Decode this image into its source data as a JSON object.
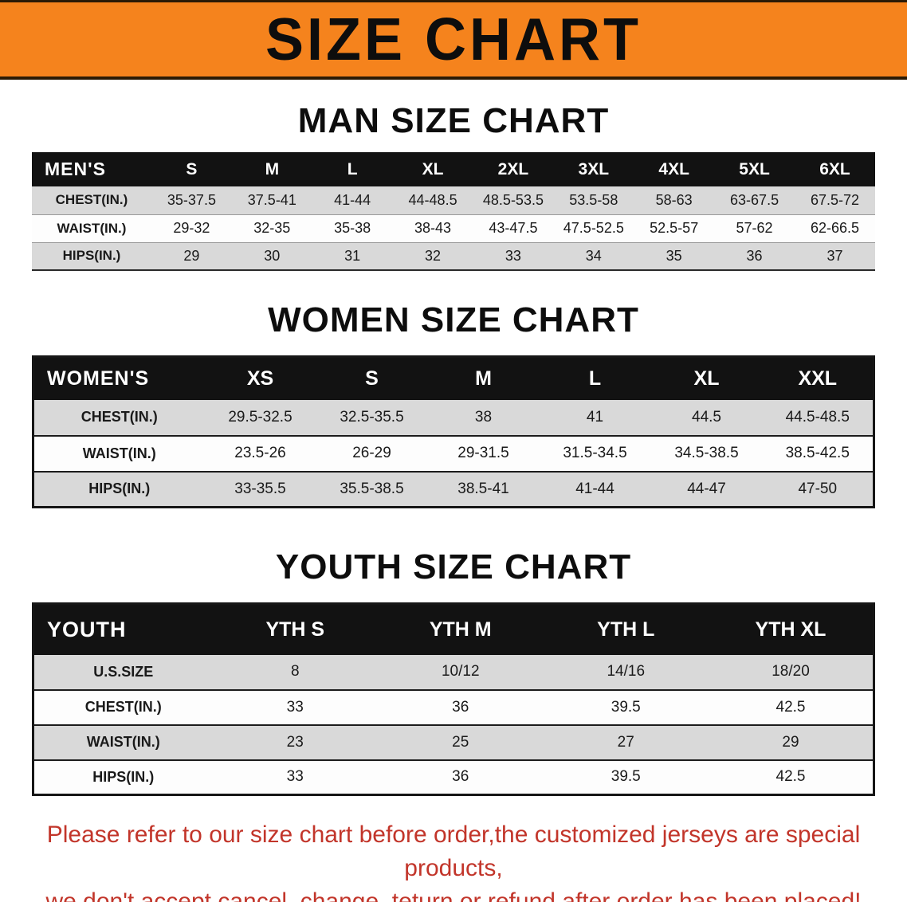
{
  "banner": {
    "title": "SIZE CHART"
  },
  "men": {
    "title": "MAN SIZE CHART",
    "header": [
      "MEN'S",
      "S",
      "M",
      "L",
      "XL",
      "2XL",
      "3XL",
      "4XL",
      "5XL",
      "6XL"
    ],
    "rows": [
      {
        "label": "CHEST(IN.)",
        "cells": [
          "35-37.5",
          "37.5-41",
          "41-44",
          "44-48.5",
          "48.5-53.5",
          "53.5-58",
          "58-63",
          "63-67.5",
          "67.5-72"
        ]
      },
      {
        "label": "WAIST(IN.)",
        "cells": [
          "29-32",
          "32-35",
          "35-38",
          "38-43",
          "43-47.5",
          "47.5-52.5",
          "52.5-57",
          "57-62",
          "62-66.5"
        ]
      },
      {
        "label": "HIPS(IN.)",
        "cells": [
          "29",
          "30",
          "31",
          "32",
          "33",
          "34",
          "35",
          "36",
          "37"
        ]
      }
    ]
  },
  "women": {
    "title": "WOMEN SIZE CHART",
    "header": [
      "WOMEN'S",
      "XS",
      "S",
      "M",
      "L",
      "XL",
      "XXL"
    ],
    "rows": [
      {
        "label": "CHEST(IN.)",
        "cells": [
          "29.5-32.5",
          "32.5-35.5",
          "38",
          "41",
          "44.5",
          "44.5-48.5"
        ]
      },
      {
        "label": "WAIST(IN.)",
        "cells": [
          "23.5-26",
          "26-29",
          "29-31.5",
          "31.5-34.5",
          "34.5-38.5",
          "38.5-42.5"
        ]
      },
      {
        "label": "HIPS(IN.)",
        "cells": [
          "33-35.5",
          "35.5-38.5",
          "38.5-41",
          "41-44",
          "44-47",
          "47-50"
        ]
      }
    ]
  },
  "youth": {
    "title": "YOUTH SIZE CHART",
    "header": [
      "YOUTH",
      "YTH S",
      "YTH M",
      "YTH L",
      "YTH XL"
    ],
    "rows": [
      {
        "label": "U.S.SIZE",
        "cells": [
          "8",
          "10/12",
          "14/16",
          "18/20"
        ]
      },
      {
        "label": "CHEST(IN.)",
        "cells": [
          "33",
          "36",
          "39.5",
          "42.5"
        ]
      },
      {
        "label": "WAIST(IN.)",
        "cells": [
          "23",
          "25",
          "27",
          "29"
        ]
      },
      {
        "label": "HIPS(IN.)",
        "cells": [
          "33",
          "36",
          "39.5",
          "42.5"
        ]
      }
    ]
  },
  "disclaimer": {
    "line1": "Please refer to our size chart before order,the customized jerseys are special products,",
    "line2": "we don't accept cancel, change, teturn or refund after order has been placed!"
  },
  "colors": {
    "banner-bg": "#f5831d",
    "banner-border": "#2b1a05",
    "table-header-bg": "#121212",
    "table-header-text": "#ffffff",
    "stripe-gray": "#d9d9d9",
    "title-text": "#0d0d0d",
    "disclaimer-red": "#c2352a"
  }
}
